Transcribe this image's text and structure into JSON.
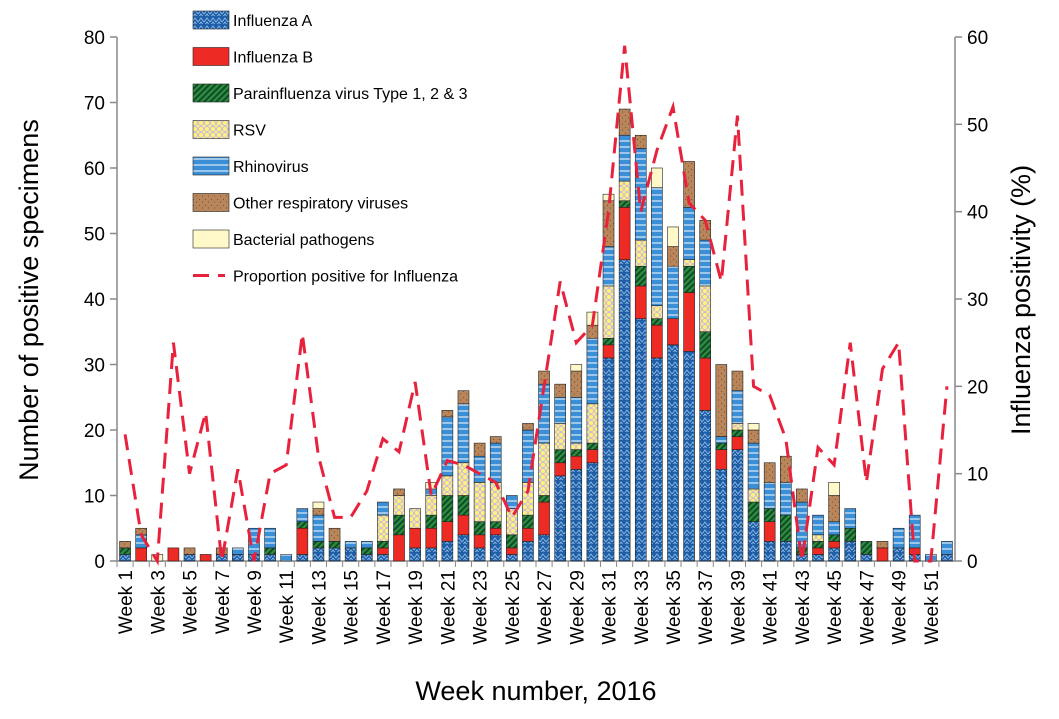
{
  "chart_data": {
    "type": "bar",
    "stacked": true,
    "x_label": "Week number, 2016",
    "y_label": "Number of positive specimens",
    "y2_label": "Influenza positivity (%)",
    "categories": [
      "Week 1",
      null,
      "Week 3",
      null,
      "Week 5",
      null,
      "Week 7",
      null,
      "Week 9",
      null,
      "Week 11",
      null,
      "Week 13",
      null,
      "Week 15",
      null,
      "Week 17",
      null,
      "Week 19",
      null,
      "Week 21",
      null,
      "Week 23",
      null,
      "Week 25",
      null,
      "Week 27",
      null,
      "Week 29",
      null,
      "Week 31",
      null,
      "Week 33",
      null,
      "Week 35",
      null,
      "Week 37",
      null,
      "Week 39",
      null,
      "Week 41",
      null,
      "Week 43",
      null,
      "Week 45",
      null,
      "Week 47",
      null,
      "Week 49",
      null,
      "Week 51",
      null
    ],
    "ylim": [
      0,
      80
    ],
    "yticks": [
      0,
      10,
      20,
      30,
      40,
      50,
      60,
      70,
      80
    ],
    "y2lim": [
      0,
      60
    ],
    "y2ticks": [
      0,
      10,
      20,
      30,
      40,
      50,
      60
    ],
    "grid": false,
    "legend": "upper left",
    "series": [
      {
        "name": "Influenza A",
        "color": "#1f5fa8",
        "values": [
          1,
          0,
          0,
          0,
          1,
          0,
          1,
          1,
          1,
          1,
          0,
          1,
          2,
          2,
          2,
          1,
          1,
          0,
          2,
          2,
          3,
          4,
          2,
          4,
          1,
          3,
          4,
          13,
          14,
          15,
          31,
          46,
          37,
          31,
          33,
          32,
          23,
          14,
          17,
          6,
          3,
          3,
          1,
          1,
          2,
          3,
          1,
          0,
          2,
          1,
          0,
          1
        ]
      },
      {
        "name": "Influenza B",
        "color": "#ee2a24",
        "values": [
          0,
          2,
          0,
          2,
          0,
          1,
          0,
          0,
          0,
          0,
          0,
          4,
          0,
          0,
          0,
          0,
          1,
          4,
          3,
          3,
          3,
          3,
          2,
          1,
          1,
          2,
          5,
          2,
          2,
          2,
          2,
          8,
          5,
          5,
          4,
          9,
          8,
          3,
          2,
          0,
          3,
          0,
          0,
          1,
          1,
          0,
          0,
          2,
          0,
          1,
          0,
          0
        ]
      },
      {
        "name": "Parainfluenza virus Type 1, 2 & 3",
        "color": "#2e8b44",
        "values": [
          1,
          0,
          0,
          0,
          0,
          0,
          0,
          0,
          0,
          1,
          0,
          1,
          1,
          1,
          0,
          1,
          1,
          3,
          0,
          2,
          4,
          3,
          2,
          1,
          2,
          2,
          1,
          2,
          1,
          1,
          1,
          1,
          3,
          1,
          0,
          4,
          4,
          1,
          1,
          3,
          2,
          4,
          1,
          1,
          1,
          2,
          2,
          0,
          0,
          0,
          0,
          0
        ]
      },
      {
        "name": "RSV",
        "color": "#fff27a",
        "values": [
          0,
          0,
          0,
          0,
          0,
          0,
          0,
          0,
          0,
          0,
          0,
          0,
          0,
          0,
          0,
          0,
          4,
          3,
          3,
          3,
          3,
          5,
          6,
          6,
          4,
          5,
          8,
          4,
          1,
          6,
          8,
          3,
          4,
          2,
          0,
          1,
          7,
          0,
          1,
          2,
          0,
          0,
          0,
          1,
          0,
          0,
          0,
          0,
          0,
          0,
          0,
          0
        ]
      },
      {
        "name": "Rhinovirus",
        "color": "#3b8fd6",
        "values": [
          0,
          2,
          0,
          0,
          0,
          0,
          0,
          1,
          4,
          3,
          1,
          2,
          4,
          0,
          1,
          1,
          2,
          0,
          0,
          1,
          9,
          9,
          4,
          6,
          2,
          8,
          9,
          4,
          7,
          10,
          6,
          7,
          14,
          18,
          8,
          8,
          7,
          1,
          5,
          7,
          4,
          5,
          7,
          3,
          2,
          3,
          0,
          0,
          3,
          5,
          1,
          2
        ]
      },
      {
        "name": "Other respiratory viruses",
        "color": "#b8865a",
        "values": [
          1,
          1,
          0,
          0,
          1,
          0,
          1,
          0,
          0,
          0,
          0,
          0,
          1,
          2,
          0,
          0,
          0,
          1,
          0,
          0,
          1,
          2,
          2,
          1,
          0,
          1,
          2,
          2,
          4,
          2,
          7,
          4,
          2,
          0,
          3,
          7,
          3,
          11,
          3,
          2,
          3,
          4,
          2,
          0,
          4,
          0,
          0,
          1,
          0,
          0,
          0,
          0
        ]
      },
      {
        "name": "Bacterial pathogens",
        "color": "#fff8c8",
        "values": [
          0,
          0,
          1,
          0,
          0,
          0,
          0,
          0,
          0,
          0,
          0,
          0,
          1,
          0,
          0,
          0,
          0,
          0,
          0,
          1,
          0,
          0,
          0,
          0,
          0,
          0,
          0,
          0,
          1,
          2,
          1,
          0,
          0,
          3,
          3,
          0,
          0,
          0,
          0,
          1,
          0,
          0,
          0,
          0,
          2,
          0,
          0,
          0,
          0,
          0,
          0,
          0
        ]
      },
      {
        "name": "Proportion positive for Influenza",
        "type": "line",
        "axis": "y2",
        "color": "#e8223c",
        "values": [
          14.5,
          3,
          0,
          25,
          10,
          17,
          0,
          10.5,
          0,
          10,
          11,
          26,
          12,
          5,
          5,
          8,
          14,
          12.5,
          20.5,
          7.5,
          11.5,
          11,
          10,
          9,
          5,
          8,
          20,
          32,
          25,
          27,
          40,
          59,
          40,
          47,
          52,
          41,
          39,
          32,
          51,
          20,
          19,
          14,
          0,
          13,
          11,
          25,
          9,
          22,
          25,
          0,
          0,
          20
        ]
      }
    ]
  }
}
